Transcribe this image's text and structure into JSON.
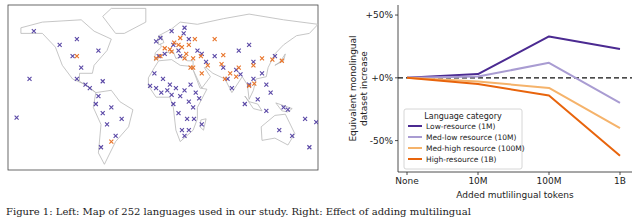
{
  "caption": "Figure 1: Left: Map of 252 languages used in our study. Right: Effect of adding multilingual",
  "chart_data": [
    {
      "type": "scatter",
      "xlim": [
        -180,
        180
      ],
      "ylim": [
        -60,
        85
      ],
      "tick_labels": false,
      "series": [
        {
          "color": "#5a48a6",
          "marker": "x",
          "x": [
            -150,
            -120,
            -105,
            -100,
            -90,
            -85,
            -75,
            -70,
            -65,
            -60,
            -55,
            -48,
            -72,
            -78,
            -100,
            -75,
            -95,
            -70,
            -8,
            -3,
            2,
            10,
            18,
            24,
            30,
            12,
            -5,
            20,
            25,
            40,
            45,
            -15,
            -8,
            -2,
            5,
            10,
            15,
            20,
            25,
            30,
            35,
            38,
            42,
            28,
            22,
            30,
            18,
            12,
            45,
            8,
            0,
            32,
            36,
            25,
            -10,
            50,
            60,
            70,
            75,
            80,
            85,
            90,
            100,
            105,
            110,
            120,
            125,
            105,
            115,
            88,
            100,
            130,
            140,
            145,
            150,
            135,
            120,
            165,
            178,
            -155,
            -170,
            170,
            95
          ],
          "values": [
            62,
            50,
            40,
            20,
            15,
            12,
            5,
            -10,
            -20,
            -5,
            -30,
            -15,
            -40,
            -2,
            55,
            45,
            30,
            18,
            53,
            56,
            42,
            62,
            45,
            60,
            55,
            50,
            40,
            40,
            65,
            45,
            42,
            14,
            12,
            8,
            10,
            6,
            12,
            5,
            10,
            0,
            -5,
            8,
            3,
            -15,
            -25,
            -25,
            -10,
            -2,
            -20,
            15,
            20,
            15,
            -15,
            -30,
            25,
            35,
            40,
            30,
            20,
            12,
            28,
            24,
            15,
            20,
            2,
            15,
            8,
            35,
            25,
            45,
            50,
            40,
            -5,
            -7,
            -30,
            -25,
            -8,
            -15,
            -18,
            20,
            -14,
            -40,
            -2
          ]
        },
        {
          "color": "#e8742a",
          "marker": "x",
          "x": [
            -3,
            2,
            8,
            13,
            18,
            22,
            27,
            30,
            37,
            10,
            -8,
            20,
            25,
            35,
            44,
            52,
            45,
            35,
            68,
            72,
            78,
            85,
            88,
            105,
            115,
            138,
            127,
            100,
            106,
            70,
            60,
            -100,
            -60,
            32
          ],
          "values": [
            40,
            47,
            46,
            52,
            50,
            48,
            42,
            50,
            55,
            44,
            38,
            56,
            38,
            38,
            40,
            32,
            25,
            30,
            33,
            20,
            25,
            22,
            30,
            32,
            38,
            36,
            37,
            14,
            16,
            41,
            55,
            40,
            -35,
            30
          ]
        }
      ]
    },
    {
      "type": "line",
      "ylabel": [
        "Equivalent monolingual",
        "dataset increase"
      ],
      "xlabel": "Added mutlilingual tokens",
      "categories": [
        "None",
        "10M",
        "100M",
        "1B"
      ],
      "ylim": [
        -75,
        58
      ],
      "yticks": [
        {
          "value": 50,
          "label": "+50%"
        },
        {
          "value": 0,
          "label": "+0%"
        },
        {
          "value": -50,
          "label": "-50%"
        }
      ],
      "hline": 0,
      "legend": "lower left",
      "legend_title": "Language category",
      "series": [
        {
          "name": "Low-resource (1M)",
          "color": "#4b2a91",
          "values": [
            0,
            3,
            33,
            23
          ]
        },
        {
          "name": "Med-low resource (10M)",
          "color": "#a99cd2",
          "values": [
            0,
            1,
            12,
            -20
          ]
        },
        {
          "name": "Med-high resource (100M)",
          "color": "#f5b36b",
          "values": [
            0,
            -3,
            -8,
            -40
          ]
        },
        {
          "name": "High-resource (1B)",
          "color": "#e8640c",
          "values": [
            0,
            -5,
            -14,
            -62
          ]
        }
      ]
    }
  ]
}
